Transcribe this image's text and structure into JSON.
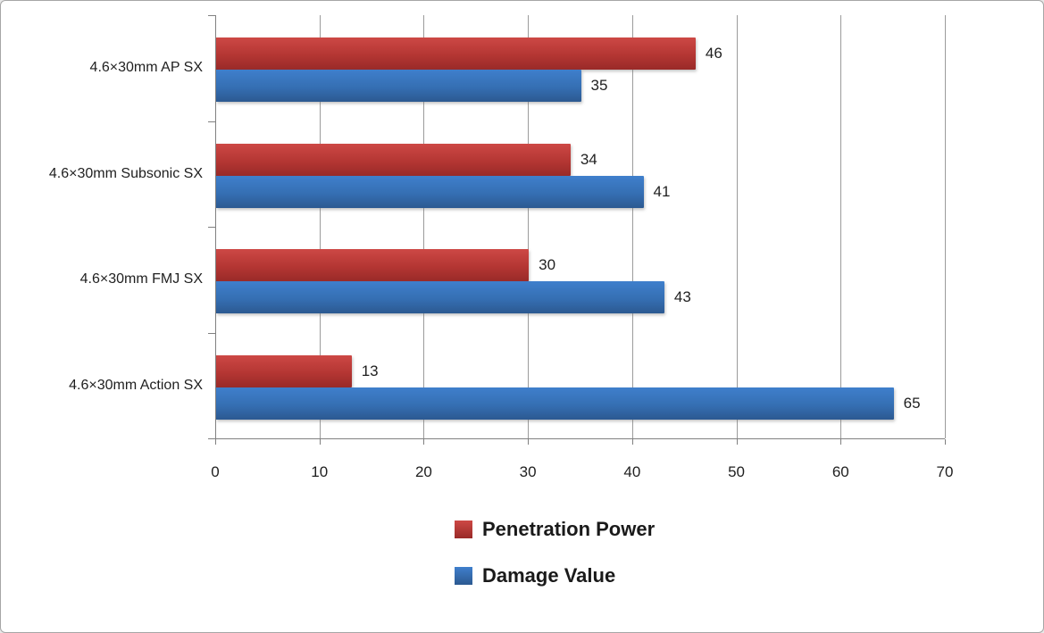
{
  "chart_data": {
    "type": "bar",
    "orientation": "horizontal",
    "title": "",
    "categories": [
      "4.6×30mm AP SX",
      "4.6×30mm Subsonic SX",
      "4.6×30mm FMJ SX",
      "4.6×30mm Action SX"
    ],
    "series": [
      {
        "name": "Penetration Power",
        "color": "#b23835",
        "gradient_top": "#cd4845",
        "gradient_mid": "#b43633",
        "gradient_bottom": "#992a28",
        "values": [
          46,
          34,
          30,
          13
        ]
      },
      {
        "name": "Damage Value",
        "color": "#3b76ba",
        "gradient_top": "#3f7fcc",
        "gradient_mid": "#356fb3",
        "gradient_bottom": "#2c5991",
        "values": [
          35,
          41,
          43,
          65
        ]
      }
    ],
    "xlim": [
      0,
      70
    ],
    "xticks": [
      "0",
      "10",
      "20",
      "30",
      "40",
      "50",
      "60",
      "70"
    ],
    "grid": true,
    "data_labels": true,
    "legend_position": "bottom-center"
  },
  "colors": {
    "background": "#ffffff",
    "chart_border": "#a6a6a6",
    "gridline": "#9b9b9b",
    "axis": "#808080",
    "text": "#1f1f1f"
  }
}
